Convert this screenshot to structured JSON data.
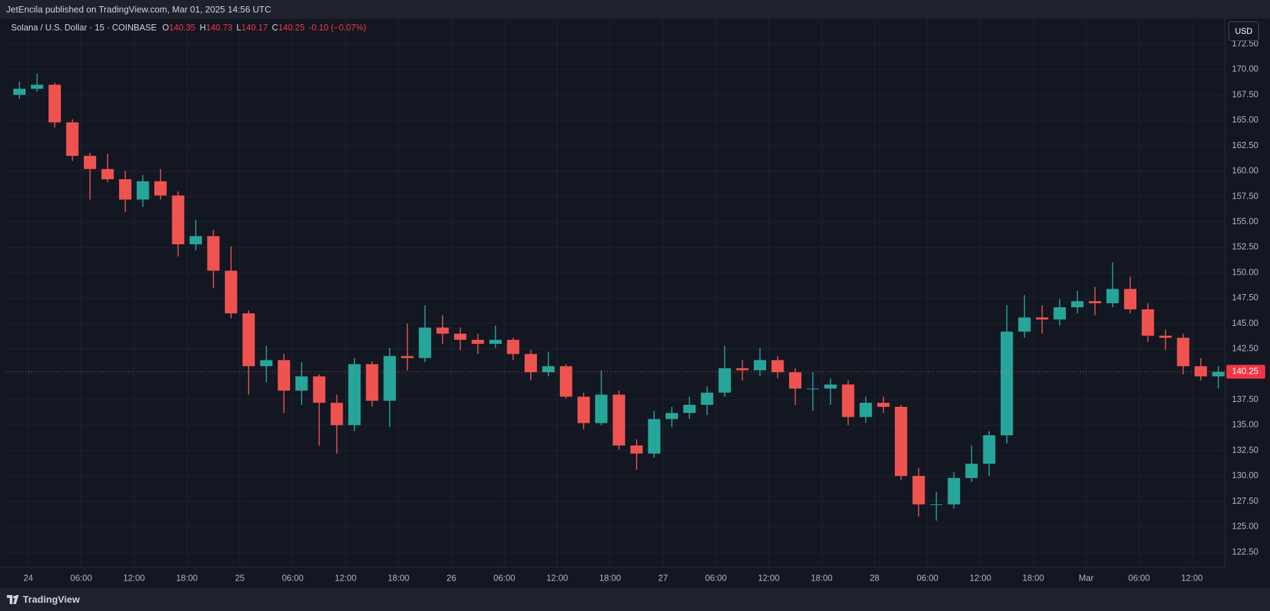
{
  "header": "JetEncila published on TradingView.com, Mar 01, 2025 14:56 UTC",
  "currency_button": "USD",
  "footer": "TradingView",
  "chart_data": {
    "type": "candlestick",
    "title": "Solana / U.S. Dollar · 15 · COINBASE",
    "legend_items": [
      {
        "label": "O",
        "value": 140.35
      },
      {
        "label": "H",
        "value": 140.73
      },
      {
        "label": "L",
        "value": 140.17
      },
      {
        "label": "C",
        "value": 140.25
      }
    ],
    "change": "-0.10 (−0.07%)",
    "up_color": "#26a69a",
    "down_color": "#ef5350",
    "grid": true,
    "last_price": {
      "value": 140.25,
      "label": "140.25"
    },
    "ylim": [
      121,
      175
    ],
    "yticks": [
      {
        "value": 122.5,
        "label": "122.50"
      },
      {
        "value": 125,
        "label": "125.00"
      },
      {
        "value": 127.5,
        "label": "127.50"
      },
      {
        "value": 130,
        "label": "130.00"
      },
      {
        "value": 132.5,
        "label": "132.50"
      },
      {
        "value": 135,
        "label": "135.00"
      },
      {
        "value": 137.5,
        "label": "137.50"
      },
      {
        "value": 140,
        "label": "140.00"
      },
      {
        "value": 142.5,
        "label": "142.50"
      },
      {
        "value": 145,
        "label": "145.00"
      },
      {
        "value": 147.5,
        "label": "147.50"
      },
      {
        "value": 150,
        "label": "150.00"
      },
      {
        "value": 152.5,
        "label": "152.50"
      },
      {
        "value": 155,
        "label": "155.00"
      },
      {
        "value": 157.5,
        "label": "157.50"
      },
      {
        "value": 160,
        "label": "160.00"
      },
      {
        "value": 162.5,
        "label": "162.50"
      },
      {
        "value": 165,
        "label": "165.00"
      },
      {
        "value": 167.5,
        "label": "167.50"
      },
      {
        "value": 170,
        "label": "170.00"
      },
      {
        "value": 172.5,
        "label": "172.50"
      }
    ],
    "xlim": [
      "2025-02-23T21:30",
      "2025-03-01T15:45"
    ],
    "xticks": [
      {
        "value": "2025-02-24T00:00",
        "label": "24"
      },
      {
        "value": "2025-02-24T06:00",
        "label": "06:00"
      },
      {
        "value": "2025-02-24T12:00",
        "label": "12:00"
      },
      {
        "value": "2025-02-24T18:00",
        "label": "18:00"
      },
      {
        "value": "2025-02-25T00:00",
        "label": "25"
      },
      {
        "value": "2025-02-25T06:00",
        "label": "06:00"
      },
      {
        "value": "2025-02-25T12:00",
        "label": "12:00"
      },
      {
        "value": "2025-02-25T18:00",
        "label": "18:00"
      },
      {
        "value": "2025-02-26T00:00",
        "label": "26"
      },
      {
        "value": "2025-02-26T06:00",
        "label": "06:00"
      },
      {
        "value": "2025-02-26T12:00",
        "label": "12:00"
      },
      {
        "value": "2025-02-26T18:00",
        "label": "18:00"
      },
      {
        "value": "2025-02-27T00:00",
        "label": "27"
      },
      {
        "value": "2025-02-27T06:00",
        "label": "06:00"
      },
      {
        "value": "2025-02-27T12:00",
        "label": "12:00"
      },
      {
        "value": "2025-02-27T18:00",
        "label": "18:00"
      },
      {
        "value": "2025-02-28T00:00",
        "label": "28"
      },
      {
        "value": "2025-02-28T06:00",
        "label": "06:00"
      },
      {
        "value": "2025-02-28T12:00",
        "label": "12:00"
      },
      {
        "value": "2025-02-28T18:00",
        "label": "18:00"
      },
      {
        "value": "2025-03-01T00:00",
        "label": "Mar"
      },
      {
        "value": "2025-03-01T06:00",
        "label": "06:00"
      },
      {
        "value": "2025-03-01T12:00",
        "label": "12:00"
      }
    ],
    "x": [
      "2025-02-23T22:00",
      "2025-02-24T00:00",
      "2025-02-24T02:00",
      "2025-02-24T04:00",
      "2025-02-24T06:00",
      "2025-02-24T08:00",
      "2025-02-24T10:00",
      "2025-02-24T12:00",
      "2025-02-24T14:00",
      "2025-02-24T16:00",
      "2025-02-24T18:00",
      "2025-02-24T20:00",
      "2025-02-24T22:00",
      "2025-02-25T00:00",
      "2025-02-25T02:00",
      "2025-02-25T04:00",
      "2025-02-25T06:00",
      "2025-02-25T08:00",
      "2025-02-25T10:00",
      "2025-02-25T12:00",
      "2025-02-25T14:00",
      "2025-02-25T16:00",
      "2025-02-25T18:00",
      "2025-02-25T20:00",
      "2025-02-25T22:00",
      "2025-02-26T00:00",
      "2025-02-26T02:00",
      "2025-02-26T04:00",
      "2025-02-26T06:00",
      "2025-02-26T08:00",
      "2025-02-26T10:00",
      "2025-02-26T12:00",
      "2025-02-26T14:00",
      "2025-02-26T16:00",
      "2025-02-26T18:00",
      "2025-02-26T20:00",
      "2025-02-26T22:00",
      "2025-02-27T00:00",
      "2025-02-27T02:00",
      "2025-02-27T04:00",
      "2025-02-27T06:00",
      "2025-02-27T08:00",
      "2025-02-27T10:00",
      "2025-02-27T12:00",
      "2025-02-27T14:00",
      "2025-02-27T16:00",
      "2025-02-27T18:00",
      "2025-02-27T20:00",
      "2025-02-27T22:00",
      "2025-02-28T00:00",
      "2025-02-28T02:00",
      "2025-02-28T04:00",
      "2025-02-28T06:00",
      "2025-02-28T08:00",
      "2025-02-28T10:00",
      "2025-02-28T12:00",
      "2025-02-28T14:00",
      "2025-02-28T16:00",
      "2025-02-28T18:00",
      "2025-02-28T20:00",
      "2025-02-28T22:00",
      "2025-03-01T00:00",
      "2025-03-01T02:00",
      "2025-03-01T04:00",
      "2025-03-01T06:00",
      "2025-03-01T08:00",
      "2025-03-01T10:00",
      "2025-03-01T12:00",
      "2025-03-01T14:00"
    ],
    "candles": [
      [
        167.5,
        168.8,
        167.1,
        168.1
      ],
      [
        168.1,
        169.6,
        167.8,
        168.5
      ],
      [
        168.5,
        168.7,
        164.3,
        164.8
      ],
      [
        164.8,
        165.1,
        161.0,
        161.5
      ],
      [
        161.5,
        161.8,
        157.2,
        160.2
      ],
      [
        160.2,
        161.7,
        158.9,
        159.2
      ],
      [
        159.2,
        160.0,
        156.0,
        157.2
      ],
      [
        157.2,
        159.6,
        156.5,
        159.0
      ],
      [
        159.0,
        160.2,
        157.2,
        157.6
      ],
      [
        157.6,
        158.0,
        151.6,
        152.8
      ],
      [
        152.8,
        155.2,
        152.2,
        153.6
      ],
      [
        153.6,
        154.2,
        148.5,
        150.2
      ],
      [
        150.2,
        152.6,
        145.5,
        146.0
      ],
      [
        146.0,
        146.3,
        138.0,
        140.8
      ],
      [
        140.8,
        142.8,
        139.2,
        141.4
      ],
      [
        141.4,
        142.0,
        136.2,
        138.4
      ],
      [
        138.4,
        141.2,
        137.0,
        139.8
      ],
      [
        139.8,
        140.0,
        133.0,
        137.2
      ],
      [
        137.2,
        138.0,
        132.2,
        135.0
      ],
      [
        135.0,
        141.6,
        134.4,
        141.0
      ],
      [
        141.0,
        141.3,
        136.8,
        137.4
      ],
      [
        137.4,
        142.6,
        134.8,
        141.8
      ],
      [
        141.8,
        145.0,
        140.4,
        141.6
      ],
      [
        141.6,
        146.8,
        141.2,
        144.6
      ],
      [
        144.6,
        145.8,
        143.0,
        144.0
      ],
      [
        144.0,
        144.6,
        142.4,
        143.4
      ],
      [
        143.4,
        144.0,
        142.0,
        143.0
      ],
      [
        143.0,
        144.8,
        142.6,
        143.4
      ],
      [
        143.4,
        143.6,
        141.4,
        142.0
      ],
      [
        142.0,
        142.4,
        139.4,
        140.2
      ],
      [
        140.2,
        142.2,
        139.8,
        140.8
      ],
      [
        140.8,
        141.0,
        137.6,
        137.8
      ],
      [
        137.8,
        138.2,
        134.6,
        135.2
      ],
      [
        135.2,
        140.4,
        135.0,
        138.0
      ],
      [
        138.0,
        138.4,
        132.6,
        133.0
      ],
      [
        133.0,
        133.6,
        130.6,
        132.2
      ],
      [
        132.2,
        136.4,
        131.8,
        135.6
      ],
      [
        135.6,
        136.8,
        134.8,
        136.2
      ],
      [
        136.2,
        137.8,
        135.6,
        137.0
      ],
      [
        137.0,
        138.8,
        136.0,
        138.2
      ],
      [
        138.2,
        142.8,
        137.8,
        140.6
      ],
      [
        140.6,
        141.4,
        139.4,
        140.4
      ],
      [
        140.4,
        142.6,
        139.8,
        141.4
      ],
      [
        141.4,
        141.8,
        139.6,
        140.2
      ],
      [
        140.2,
        140.6,
        137.0,
        138.6
      ],
      [
        138.6,
        140.2,
        136.4,
        138.6
      ],
      [
        138.6,
        139.6,
        137.0,
        139.0
      ],
      [
        139.0,
        139.4,
        135.0,
        135.8
      ],
      [
        135.8,
        137.8,
        135.2,
        137.2
      ],
      [
        137.2,
        137.8,
        136.2,
        136.8
      ],
      [
        136.8,
        137.0,
        129.6,
        130.0
      ],
      [
        130.0,
        130.8,
        126.0,
        127.2
      ],
      [
        127.2,
        128.4,
        125.6,
        127.2
      ],
      [
        127.2,
        130.4,
        126.8,
        129.8
      ],
      [
        129.8,
        133.0,
        129.4,
        131.2
      ],
      [
        131.2,
        134.4,
        130.0,
        134.0
      ],
      [
        134.0,
        146.8,
        133.2,
        144.2
      ],
      [
        144.2,
        147.8,
        143.6,
        145.6
      ],
      [
        145.6,
        146.8,
        144.0,
        145.4
      ],
      [
        145.4,
        147.4,
        144.8,
        146.6
      ],
      [
        146.6,
        148.2,
        146.0,
        147.2
      ],
      [
        147.2,
        148.6,
        145.8,
        147.0
      ],
      [
        147.0,
        151.0,
        146.6,
        148.4
      ],
      [
        148.4,
        149.6,
        146.0,
        146.4
      ],
      [
        146.4,
        147.0,
        143.2,
        143.8
      ],
      [
        143.8,
        144.4,
        142.4,
        143.6
      ],
      [
        143.6,
        144.0,
        140.0,
        140.8
      ],
      [
        140.8,
        141.6,
        139.4,
        139.8
      ],
      [
        139.8,
        140.8,
        138.6,
        140.25
      ]
    ]
  }
}
